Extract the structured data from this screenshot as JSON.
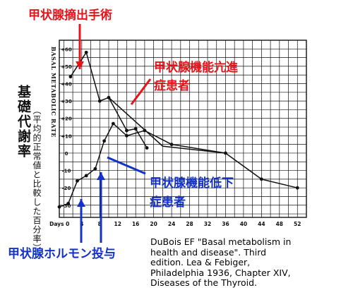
{
  "chart_data": {
    "type": "line",
    "title": "",
    "ylabel": "BASAL METABOLIC RATE",
    "xlabel": "Days",
    "x_ticks": [
      0,
      4,
      8,
      12,
      16,
      20,
      24,
      28,
      32,
      36,
      40,
      44,
      48,
      52
    ],
    "x_tick_labels": [
      "Days 0",
      "4",
      "8",
      "12",
      "16",
      "20",
      "24",
      "28",
      "32",
      "36",
      "40",
      "44",
      "48",
      "52"
    ],
    "y_ticks": [
      -30,
      -20,
      -10,
      0,
      10,
      20,
      30,
      40,
      50,
      60
    ],
    "y_tick_labels": [
      "-30",
      "-20",
      "-10",
      "0",
      "+10",
      "+20",
      "+30",
      "+40",
      "+50",
      "+60"
    ],
    "xlim": [
      -1,
      54
    ],
    "ylim": [
      -37,
      65
    ],
    "grid": true,
    "series": [
      {
        "name": "hyperthyroid",
        "x": [
          1.5,
          5,
          8,
          10,
          14,
          16,
          18.5
        ],
        "y": [
          44,
          58,
          30,
          32,
          13,
          14,
          3
        ]
      },
      {
        "name": "hyperthyroid-trend",
        "x": [
          10,
          22,
          36
        ],
        "y": [
          32,
          4,
          0
        ]
      },
      {
        "name": "hypothyroid",
        "x": [
          -1,
          1,
          3,
          5,
          7,
          9,
          11,
          14,
          18,
          24,
          36,
          44,
          52
        ],
        "y": [
          -31,
          -29,
          -16,
          -13,
          -9,
          7,
          17,
          10,
          13,
          5,
          0,
          -15,
          -20
        ]
      }
    ]
  },
  "annotations": {
    "thyroidectomy": "甲状腺摘出手術",
    "hyper_line1": "甲状腺機能亢進",
    "hyper_line2": "症患者",
    "hypo_line1": "甲状腺機能低下",
    "hypo_line2": "症患者",
    "hormone": "甲状腺ホルモン投与"
  },
  "side_label": {
    "main": "基礎代謝率",
    "sub": "（平均的正常値と比較した百分率）"
  },
  "citation": {
    "lines": [
      "DuBois EF  \"Basal metabolism in",
      "health and   disease\".  Third",
      "edition.  Lea & Febiger,",
      "Philadelphia 1936, Chapter XIV,",
      "Diseases of the Thyroid."
    ]
  },
  "colors": {
    "red": "#e8141a",
    "blue": "#1432c8",
    "ink": "#111111"
  }
}
